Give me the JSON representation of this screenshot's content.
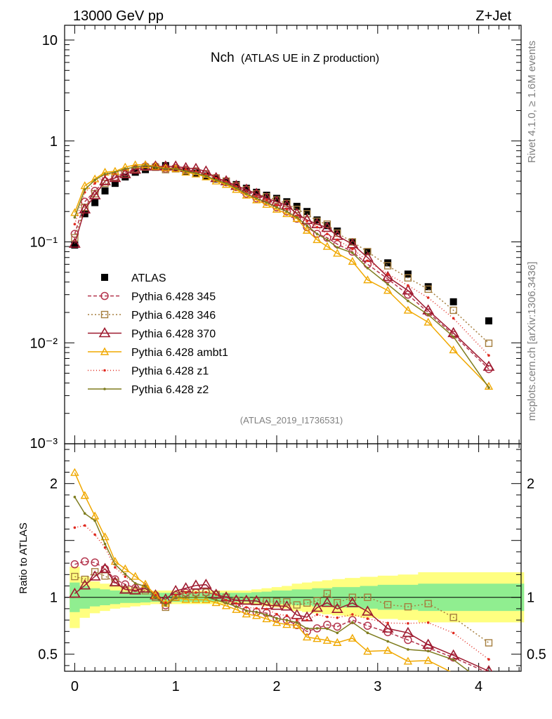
{
  "chart_data": {
    "type": "line",
    "header_left": "13000 GeV pp",
    "header_right": "Z+Jet",
    "title": "Nch",
    "title_suffix": "(ATLAS UE in Z production)",
    "analysis_tag": "(ATLAS_2019_I1736531)",
    "side_label_top": "Rivet 4.1.0, ≥ 1.6M events",
    "side_label_bottom": "mcplots.cern.ch [arXiv:1306.3436]",
    "ratio_ylabel": "Ratio to ATLAS",
    "xlim": [
      -0.1,
      4.42
    ],
    "x_ticks": [
      "0",
      "1",
      "2",
      "3",
      "4"
    ],
    "main_ylim": [
      0.001,
      14
    ],
    "main_y_ticks": [
      "10",
      "1",
      "10⁻¹",
      "10⁻²",
      "10⁻³"
    ],
    "ratio_ylim": [
      0.35,
      2.35
    ],
    "ratio_y_ticks": [
      "2",
      "1.5",
      "1",
      "0.5"
    ],
    "x": [
      0,
      0.1,
      0.2,
      0.3,
      0.4,
      0.5,
      0.6,
      0.7,
      0.8,
      0.9,
      1.0,
      1.1,
      1.2,
      1.3,
      1.4,
      1.5,
      1.6,
      1.7,
      1.8,
      1.9,
      2.0,
      2.1,
      2.2,
      2.3,
      2.4,
      2.5,
      2.6,
      2.75,
      2.9,
      3.1,
      3.3,
      3.5,
      3.75,
      4.1
    ],
    "series": [
      {
        "name": "ATLAS",
        "color": "#000000",
        "marker": "filled-square",
        "dash": "none",
        "values": [
          0.093,
          0.19,
          0.245,
          0.32,
          0.38,
          0.44,
          0.49,
          0.52,
          0.55,
          0.57,
          0.53,
          0.5,
          0.48,
          0.45,
          0.42,
          0.4,
          0.37,
          0.34,
          0.31,
          0.29,
          0.27,
          0.25,
          0.225,
          0.2,
          0.165,
          0.145,
          0.128,
          0.1,
          0.08,
          0.062,
          0.048,
          0.036,
          0.0255,
          0.0165
        ]
      },
      {
        "name": "Pythia 6.428 345",
        "color": "#b4354d",
        "marker": "open-circle",
        "dash": "5,3",
        "values": [
          0.12,
          0.25,
          0.32,
          0.4,
          0.44,
          0.49,
          0.53,
          0.56,
          0.56,
          0.53,
          0.54,
          0.52,
          0.5,
          0.47,
          0.43,
          0.39,
          0.35,
          0.3,
          0.27,
          0.25,
          0.22,
          0.2,
          0.17,
          0.14,
          0.12,
          0.11,
          0.095,
          0.08,
          0.06,
          0.043,
          0.03,
          0.02,
          0.012,
          0.0055
        ]
      },
      {
        "name": "Pythia 6.428 346",
        "color": "#a57e3e",
        "marker": "open-square",
        "dash": "2,3",
        "values": [
          0.11,
          0.22,
          0.3,
          0.38,
          0.43,
          0.47,
          0.52,
          0.55,
          0.55,
          0.52,
          0.53,
          0.51,
          0.5,
          0.47,
          0.43,
          0.4,
          0.36,
          0.33,
          0.3,
          0.28,
          0.26,
          0.24,
          0.21,
          0.19,
          0.16,
          0.15,
          0.122,
          0.1,
          0.08,
          0.058,
          0.044,
          0.034,
          0.021,
          0.0099
        ]
      },
      {
        "name": "Pythia 6.428 370",
        "color": "#9e1a2f",
        "marker": "open-triangle",
        "dash": "none",
        "values": [
          0.096,
          0.21,
          0.29,
          0.4,
          0.43,
          0.47,
          0.52,
          0.56,
          0.56,
          0.56,
          0.56,
          0.54,
          0.53,
          0.5,
          0.43,
          0.4,
          0.36,
          0.33,
          0.3,
          0.27,
          0.25,
          0.23,
          0.19,
          0.165,
          0.15,
          0.138,
          0.115,
          0.095,
          0.07,
          0.045,
          0.033,
          0.021,
          0.0125,
          0.0058
        ]
      },
      {
        "name": "Pythia 6.428 ambt1",
        "color": "#f0a800",
        "marker": "open-triangle-small",
        "dash": "none",
        "values": [
          0.195,
          0.36,
          0.42,
          0.49,
          0.5,
          0.55,
          0.58,
          0.58,
          0.56,
          0.54,
          0.53,
          0.49,
          0.47,
          0.44,
          0.4,
          0.37,
          0.33,
          0.29,
          0.26,
          0.235,
          0.21,
          0.19,
          0.17,
          0.13,
          0.105,
          0.09,
          0.077,
          0.064,
          0.042,
          0.033,
          0.021,
          0.016,
          0.0085,
          0.0037
        ]
      },
      {
        "name": "Pythia 6.428 z1",
        "color": "#e0291f",
        "marker": "small-dot",
        "dash": "1,3",
        "values": [
          0.15,
          0.31,
          0.38,
          0.46,
          0.48,
          0.52,
          0.55,
          0.57,
          0.56,
          0.54,
          0.54,
          0.52,
          0.5,
          0.47,
          0.43,
          0.39,
          0.35,
          0.31,
          0.28,
          0.26,
          0.23,
          0.21,
          0.18,
          0.16,
          0.14,
          0.12,
          0.105,
          0.085,
          0.065,
          0.048,
          0.037,
          0.028,
          0.0175,
          0.0075
        ]
      },
      {
        "name": "Pythia 6.428 z2",
        "color": "#7e7c1e",
        "marker": "small-dot",
        "dash": "none",
        "values": [
          0.175,
          0.33,
          0.41,
          0.47,
          0.49,
          0.53,
          0.55,
          0.57,
          0.55,
          0.53,
          0.53,
          0.5,
          0.48,
          0.45,
          0.41,
          0.38,
          0.34,
          0.3,
          0.27,
          0.245,
          0.22,
          0.2,
          0.175,
          0.145,
          0.12,
          0.105,
          0.088,
          0.078,
          0.055,
          0.038,
          0.026,
          0.019,
          0.0115,
          0.0036
        ]
      }
    ],
    "ratio_band_inner": [
      0.13,
      0.1,
      0.08,
      0.07,
      0.06,
      0.05,
      0.05,
      0.045,
      0.04,
      0.04,
      0.04,
      0.04,
      0.04,
      0.04,
      0.04,
      0.04,
      0.04,
      0.04,
      0.045,
      0.05,
      0.06,
      0.06,
      0.07,
      0.07,
      0.08,
      0.08,
      0.09,
      0.09,
      0.1,
      0.11,
      0.11,
      0.12,
      0.12,
      0.12
    ],
    "ratio_band_outer": [
      0.27,
      0.18,
      0.14,
      0.12,
      0.1,
      0.09,
      0.08,
      0.07,
      0.06,
      0.06,
      0.06,
      0.06,
      0.06,
      0.06,
      0.06,
      0.06,
      0.06,
      0.06,
      0.07,
      0.08,
      0.09,
      0.1,
      0.12,
      0.13,
      0.14,
      0.15,
      0.16,
      0.17,
      0.18,
      0.19,
      0.2,
      0.22,
      0.22,
      0.22
    ]
  }
}
